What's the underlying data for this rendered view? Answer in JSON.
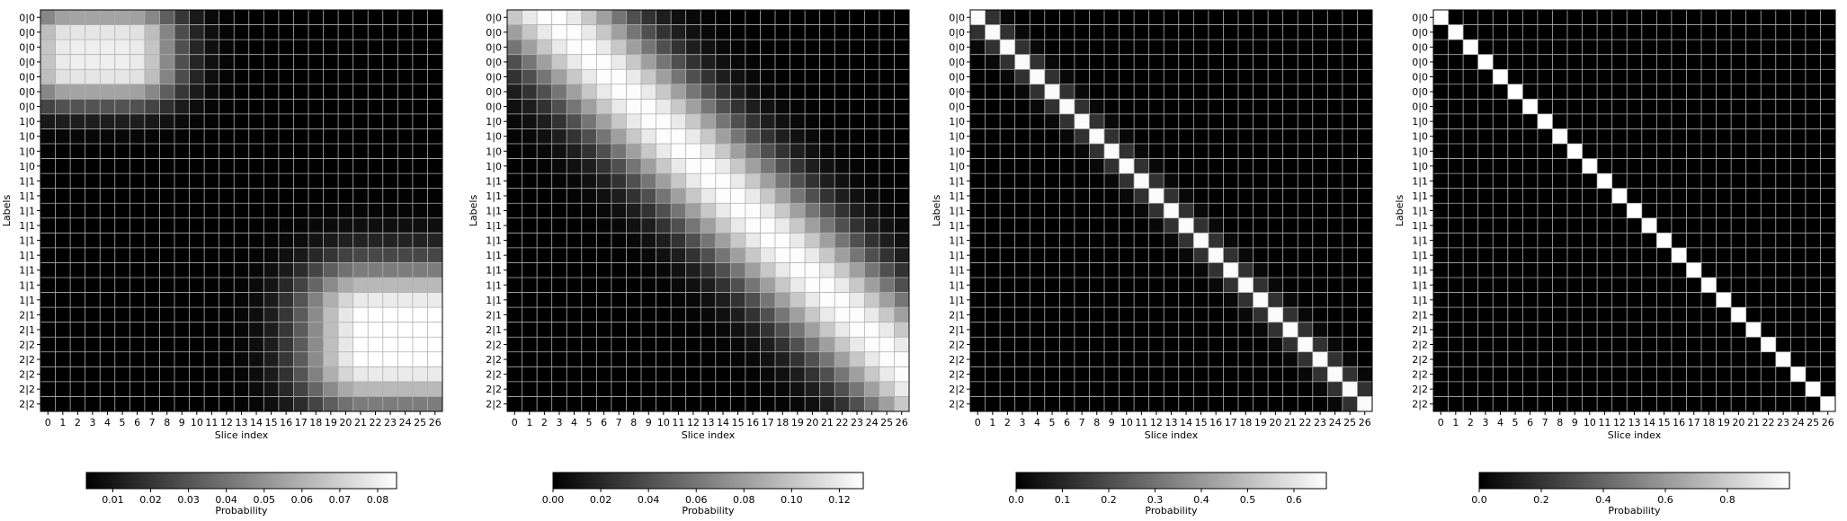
{
  "chart_data": [
    {
      "type": "heatmap",
      "xlabel": "Slice index",
      "ylabel": "Labels",
      "x_ticks": [
        "0",
        "1",
        "2",
        "3",
        "4",
        "5",
        "6",
        "7",
        "8",
        "9",
        "10",
        "11",
        "12",
        "13",
        "14",
        "15",
        "16",
        "17",
        "18",
        "19",
        "20",
        "21",
        "22",
        "23",
        "24",
        "25",
        "26"
      ],
      "y_ticks": [
        "0|0",
        "0|0",
        "0|0",
        "0|0",
        "0|0",
        "0|0",
        "0|0",
        "1|0",
        "1|0",
        "1|0",
        "1|0",
        "1|1",
        "1|1",
        "1|1",
        "1|1",
        "1|1",
        "1|1",
        "1|1",
        "1|1",
        "1|1",
        "2|1",
        "2|1",
        "2|2",
        "2|2",
        "2|2",
        "2|2",
        "2|2"
      ],
      "grid": true,
      "colormap": "gray",
      "colorbar": {
        "label": "Probability",
        "range": [
          0.003,
          0.085
        ],
        "ticks": [
          "0.01",
          "0.02",
          "0.03",
          "0.04",
          "0.05",
          "0.06",
          "0.07",
          "0.08"
        ],
        "tick_values": [
          0.01,
          0.02,
          0.03,
          0.04,
          0.05,
          0.06,
          0.07,
          0.08
        ],
        "placement": "bottom"
      },
      "pattern": "two-block",
      "blocks": [
        {
          "center": [
            2.5,
            3.5
          ],
          "width": [
            1.7,
            2.3
          ],
          "peak": 0.08
        },
        {
          "center": [
            21.5,
            24
          ],
          "width": [
            2.5,
            3.0
          ],
          "peak": 0.085
        }
      ]
    },
    {
      "type": "heatmap",
      "xlabel": "Slice index",
      "ylabel": "Labels",
      "x_ticks": [
        "0",
        "1",
        "2",
        "3",
        "4",
        "5",
        "6",
        "7",
        "8",
        "9",
        "10",
        "11",
        "12",
        "13",
        "14",
        "15",
        "16",
        "17",
        "18",
        "19",
        "20",
        "21",
        "22",
        "23",
        "24",
        "25",
        "26"
      ],
      "y_ticks": [
        "0|0",
        "0|0",
        "0|0",
        "0|0",
        "0|0",
        "0|0",
        "0|0",
        "1|0",
        "1|0",
        "1|0",
        "1|0",
        "1|1",
        "1|1",
        "1|1",
        "1|1",
        "1|1",
        "1|1",
        "1|1",
        "1|1",
        "1|1",
        "2|1",
        "2|1",
        "2|2",
        "2|2",
        "2|2",
        "2|2",
        "2|2"
      ],
      "grid": true,
      "colormap": "gray",
      "colorbar": {
        "label": "Probability",
        "range": [
          0.0,
          0.13
        ],
        "ticks": [
          "0.00",
          "0.02",
          "0.04",
          "0.06",
          "0.08",
          "0.10",
          "0.12"
        ],
        "tick_values": [
          0.0,
          0.02,
          0.04,
          0.06,
          0.08,
          0.1,
          0.12
        ],
        "placement": "bottom"
      },
      "pattern": "band",
      "band": {
        "offset": 2.5,
        "width": 3.6,
        "peak": 0.13
      }
    },
    {
      "type": "heatmap",
      "xlabel": "Slice index",
      "ylabel": "Labels",
      "x_ticks": [
        "0",
        "1",
        "2",
        "3",
        "4",
        "5",
        "6",
        "7",
        "8",
        "9",
        "10",
        "11",
        "12",
        "13",
        "14",
        "15",
        "16",
        "17",
        "18",
        "19",
        "20",
        "21",
        "22",
        "23",
        "24",
        "25",
        "26"
      ],
      "y_ticks": [
        "0|0",
        "0|0",
        "0|0",
        "0|0",
        "0|0",
        "0|0",
        "0|0",
        "1|0",
        "1|0",
        "1|0",
        "1|0",
        "1|1",
        "1|1",
        "1|1",
        "1|1",
        "1|1",
        "1|1",
        "1|1",
        "1|1",
        "1|1",
        "2|1",
        "2|1",
        "2|2",
        "2|2",
        "2|2",
        "2|2",
        "2|2"
      ],
      "grid": true,
      "colormap": "gray",
      "colorbar": {
        "label": "Probability",
        "range": [
          0.0,
          0.67
        ],
        "ticks": [
          "0.0",
          "0.1",
          "0.2",
          "0.3",
          "0.4",
          "0.5",
          "0.6"
        ],
        "tick_values": [
          0.0,
          0.1,
          0.2,
          0.3,
          0.4,
          0.5,
          0.6
        ],
        "placement": "bottom"
      },
      "pattern": "diagonal",
      "diagonal": {
        "main": 0.66,
        "near": 0.13,
        "far": 0.02
      }
    },
    {
      "type": "heatmap",
      "xlabel": "Slice index",
      "ylabel": "Labels",
      "x_ticks": [
        "0",
        "1",
        "2",
        "3",
        "4",
        "5",
        "6",
        "7",
        "8",
        "9",
        "10",
        "11",
        "12",
        "13",
        "14",
        "15",
        "16",
        "17",
        "18",
        "19",
        "20",
        "21",
        "22",
        "23",
        "24",
        "25",
        "26"
      ],
      "y_ticks": [
        "0|0",
        "0|0",
        "0|0",
        "0|0",
        "0|0",
        "0|0",
        "0|0",
        "1|0",
        "1|0",
        "1|0",
        "1|0",
        "1|1",
        "1|1",
        "1|1",
        "1|1",
        "1|1",
        "1|1",
        "1|1",
        "1|1",
        "1|1",
        "2|1",
        "2|1",
        "2|2",
        "2|2",
        "2|2",
        "2|2",
        "2|2"
      ],
      "grid": true,
      "colormap": "gray",
      "colorbar": {
        "label": "Probability",
        "range": [
          0.0,
          1.0
        ],
        "ticks": [
          "0.0",
          "0.2",
          "0.4",
          "0.6",
          "0.8"
        ],
        "tick_values": [
          0.0,
          0.2,
          0.4,
          0.6,
          0.8
        ],
        "placement": "bottom"
      },
      "pattern": "diagonal",
      "diagonal": {
        "main": 1.0,
        "near": 0.0,
        "far": 0.0
      }
    }
  ]
}
